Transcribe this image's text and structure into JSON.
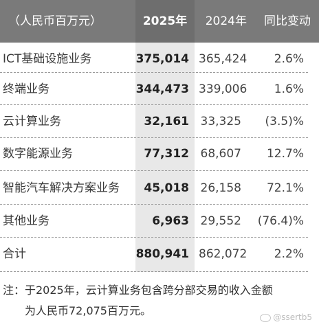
{
  "header": {
    "label": "（人民币百万元）",
    "col_2025": "2025年",
    "col_2024": "2024年",
    "col_change": "同比变动"
  },
  "rows": [
    {
      "label": "ICT基础设施业务",
      "v2025": "375,014",
      "v2024": "365,424",
      "change": "2.6%"
    },
    {
      "label": "终端业务",
      "v2025": "344,473",
      "v2024": "339,006",
      "change": "1.6%"
    },
    {
      "label": "云计算业务",
      "v2025": "32,161",
      "v2024": "33,325",
      "change": "(3.5)%"
    },
    {
      "label": "数字能源业务",
      "v2025": "77,312",
      "v2024": "68,607",
      "change": "12.7%"
    },
    {
      "label": "智能汽车解决方案业务",
      "v2025": "45,018",
      "v2024": "26,158",
      "change": "72.1%"
    },
    {
      "label": "其他业务",
      "v2025": "6,963",
      "v2024": "29,552",
      "change": "(76.4)%"
    },
    {
      "label": "合计",
      "v2025": "880,941",
      "v2024": "862,072",
      "change": "2.2%"
    }
  ],
  "note": {
    "line1": "注：于2025年，云计算业务包含跨分部交易的收入金额",
    "line2": "为人民币72,075百万元。"
  },
  "watermark": {
    "text": "@ssertb5",
    "icon": "weibo-icon"
  },
  "colors": {
    "header_bg": "#7a7a7a",
    "highlight_column_bg": "#e8e8e8",
    "text": "#333333"
  }
}
